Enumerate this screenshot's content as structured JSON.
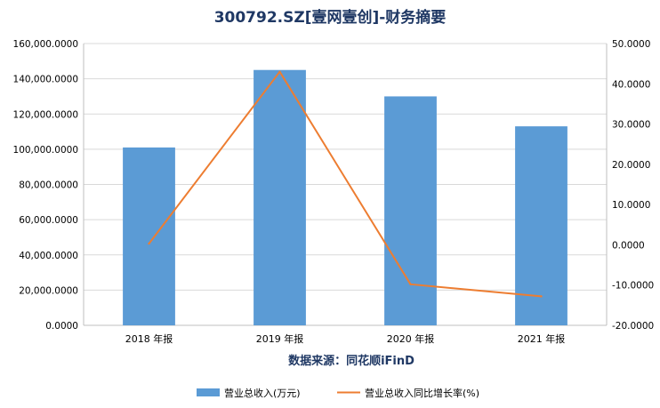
{
  "chart_data": {
    "type": "bar",
    "title": "300792.SZ[壹网壹创]-财务摘要",
    "source": "数据来源：同花顺iFinD",
    "categories": [
      "2018 年报",
      "2019 年报",
      "2020 年报",
      "2021 年报"
    ],
    "series": [
      {
        "name": "营业总收入(万元)",
        "type": "bar",
        "axis": "left",
        "color": "#5b9bd5",
        "values": [
          101000,
          145000,
          130000,
          113000
        ]
      },
      {
        "name": "营业总收入同比增长率(%)",
        "type": "line",
        "axis": "right",
        "color": "#ed7d31",
        "values": [
          0.3,
          43.0,
          -9.8,
          -12.8
        ]
      }
    ],
    "y_left": {
      "ylim": [
        0,
        160000
      ],
      "ticks": [
        "0.0000",
        "20,000.0000",
        "40,000.0000",
        "60,000.0000",
        "80,000.0000",
        "100,000.0000",
        "120,000.0000",
        "140,000.0000",
        "160,000.0000"
      ]
    },
    "y_right": {
      "ylim": [
        -20,
        50
      ],
      "ticks": [
        "-20.0000",
        "-10.0000",
        "0.0000",
        "10.0000",
        "20.0000",
        "30.0000",
        "40.0000",
        "50.0000"
      ]
    },
    "grid": true,
    "legend_position": "bottom"
  }
}
